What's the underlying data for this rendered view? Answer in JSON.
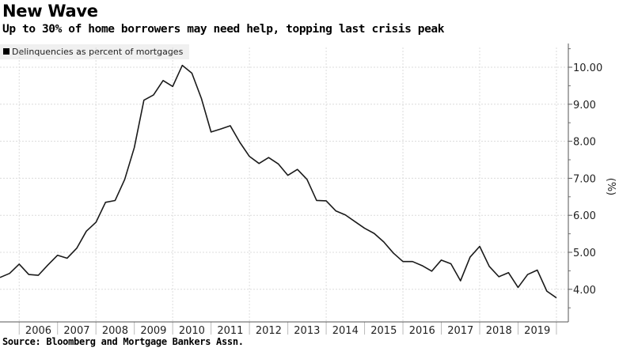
{
  "title": "New Wave",
  "subtitle": "Up to 30% of home borrowers may need help, topping last crisis peak",
  "source": "Source: Bloomberg and Mortgage Bankers Assn.",
  "chart_data": {
    "type": "line",
    "title": "New Wave",
    "subtitle": "Up to 30% of home borrowers may need help, topping last crisis peak",
    "ylabel": "(%)",
    "xlabel": "",
    "legend": {
      "position": "top-left",
      "entries": [
        "Delinquencies as percent of mortgages"
      ]
    },
    "grid": true,
    "ylim": [
      3.12,
      10.53
    ],
    "xlim": [
      "2005 Q2",
      "2019 Q4"
    ],
    "x_tick_labels": [
      "2006",
      "2007",
      "2008",
      "2009",
      "2010",
      "2011",
      "2012",
      "2013",
      "2014",
      "2015",
      "2016",
      "2017",
      "2018",
      "2019"
    ],
    "y_ticks": [
      4,
      5,
      6,
      7,
      8,
      9,
      10
    ],
    "y_tick_labels": [
      "4.00",
      "5.00",
      "6.00",
      "7.00",
      "8.00",
      "9.00",
      "10.00"
    ],
    "line_color": "#1a1a1a",
    "series": [
      {
        "name": "Delinquencies as percent of mortgages",
        "x": [
          "2005 Q2",
          "2005 Q3",
          "2005 Q4",
          "2006 Q1",
          "2006 Q2",
          "2006 Q3",
          "2006 Q4",
          "2007 Q1",
          "2007 Q2",
          "2007 Q3",
          "2007 Q4",
          "2008 Q1",
          "2008 Q2",
          "2008 Q3",
          "2008 Q4",
          "2009 Q1",
          "2009 Q2",
          "2009 Q3",
          "2009 Q4",
          "2010 Q1",
          "2010 Q2",
          "2010 Q3",
          "2010 Q4",
          "2011 Q1",
          "2011 Q2",
          "2011 Q3",
          "2011 Q4",
          "2012 Q1",
          "2012 Q2",
          "2012 Q3",
          "2012 Q4",
          "2013 Q1",
          "2013 Q2",
          "2013 Q3",
          "2013 Q4",
          "2014 Q1",
          "2014 Q2",
          "2014 Q3",
          "2014 Q4",
          "2015 Q1",
          "2015 Q2",
          "2015 Q3",
          "2015 Q4",
          "2016 Q1",
          "2016 Q2",
          "2016 Q3",
          "2016 Q4",
          "2017 Q1",
          "2017 Q2",
          "2017 Q3",
          "2017 Q4",
          "2018 Q1",
          "2018 Q2",
          "2018 Q3",
          "2018 Q4",
          "2019 Q1",
          "2019 Q2",
          "2019 Q3",
          "2019 Q4"
        ],
        "values": [
          4.32,
          4.43,
          4.68,
          4.4,
          4.38,
          4.66,
          4.92,
          4.84,
          5.11,
          5.57,
          5.81,
          6.35,
          6.4,
          6.97,
          7.83,
          9.11,
          9.25,
          9.64,
          9.48,
          10.05,
          9.84,
          9.15,
          8.25,
          8.33,
          8.42,
          7.97,
          7.59,
          7.4,
          7.56,
          7.39,
          7.08,
          7.24,
          6.97,
          6.4,
          6.39,
          6.12,
          6.01,
          5.83,
          5.65,
          5.51,
          5.28,
          4.98,
          4.75,
          4.75,
          4.64,
          4.49,
          4.79,
          4.69,
          4.23,
          4.87,
          5.16,
          4.62,
          4.34,
          4.45,
          4.05,
          4.4,
          4.52,
          3.95,
          3.77
        ]
      }
    ]
  }
}
